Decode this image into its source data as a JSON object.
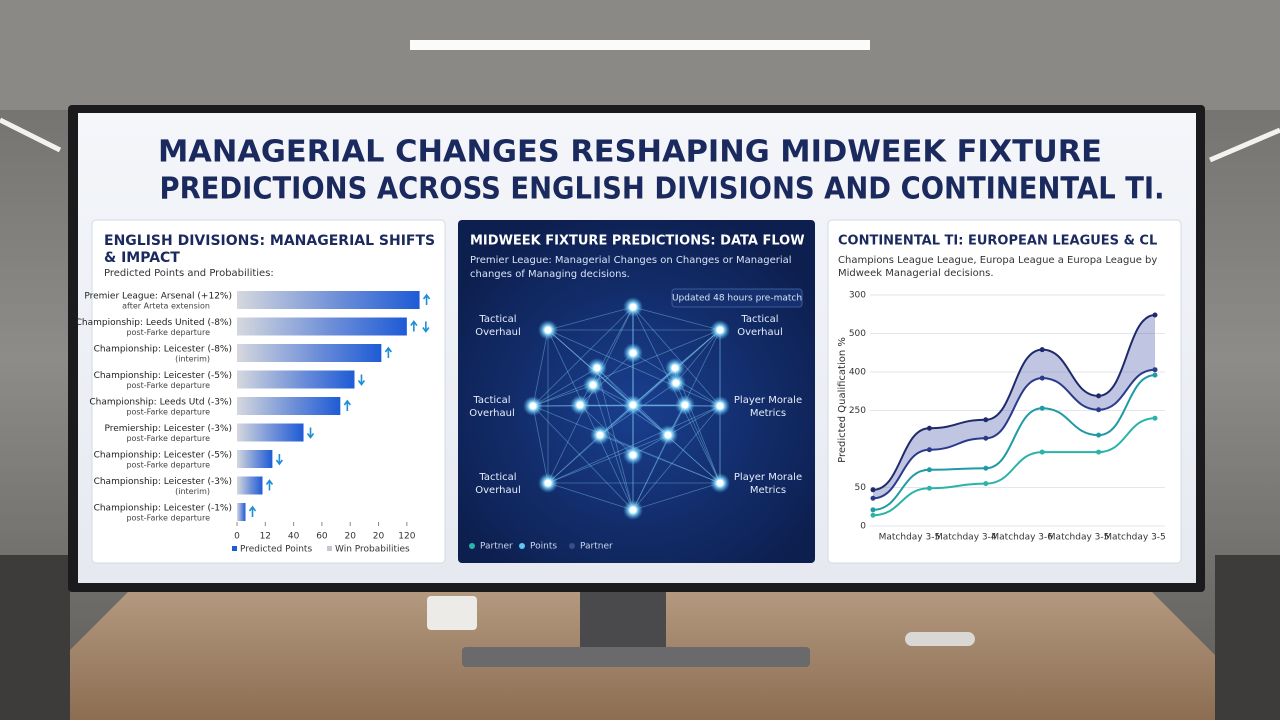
{
  "title": [
    "MANAGERIAL CHANGES RESHAPING MIDWEEK FIXTURE",
    "PREDICTIONS ACROSS ENGLISH DIVISIONS AND CONTINENTAL TI."
  ],
  "chart_data": [
    {
      "type": "bar",
      "orientation": "horizontal",
      "title": [
        "ENGLISH DIVISIONS: MANAGERIAL SHIFTS",
        "& IMPACT"
      ],
      "subtitle": "Predicted Points and Probabilities:",
      "categories": [
        [
          "Premier League: Arsenal (+12%)",
          "after Arteta extension"
        ],
        [
          "Championship: Leeds United (-8%)",
          "post-Farke departure"
        ],
        [
          "Championship: Leicester (-8%)",
          "(interim)"
        ],
        [
          "Championship: Leicester (-5%)",
          "post-Farke departure"
        ],
        [
          "Championship: Leeds Utd (-3%)",
          "post-Farke departure"
        ],
        [
          "Premiership: Leicester (-3%)",
          "post-Farke departure"
        ],
        [
          "Championship: Leicester (-5%)",
          "post-Farke departure"
        ],
        [
          "Championship: Leicester (-3%)",
          "(interim)"
        ],
        [
          "Championship: Leicester (-1%)",
          "post-Farke departure"
        ]
      ],
      "values": [
        129,
        120,
        102,
        83,
        73,
        47,
        25,
        18,
        6
      ],
      "trend": [
        "up",
        "up-down",
        "up",
        "down",
        "up",
        "down",
        "down",
        "up",
        "up"
      ],
      "xlim": [
        0,
        130
      ],
      "xticks": [
        0,
        {
          "value": 20,
          "label": "12"
        },
        40,
        60,
        {
          "value": 80,
          "label": "20"
        },
        {
          "value": 100,
          "label": "20"
        },
        120
      ],
      "legend": [
        {
          "name": "Predicted Points",
          "color": "#1e5bd6"
        },
        {
          "name": "Win Probabilities",
          "color": "#c3c8d2"
        }
      ]
    },
    {
      "type": "line",
      "title": "CONTINENTAL TI: EUROPEAN LEAGUES & CL",
      "subtitle": [
        "Champions League League, Europa League a Europa League by",
        "Midweek Managerial decisions."
      ],
      "ylabel": "Predicted Qualification %",
      "categories": [
        null,
        "Matchday 3-5",
        "Matchday 3-4",
        "Matchday 3-6",
        "Matchday 3-5",
        "Matchday 3-5"
      ],
      "ylim": [
        0,
        300
      ],
      "yticks": [
        0,
        50,
        {
          "value": 150,
          "label": "250"
        },
        {
          "value": 200,
          "label": "400"
        },
        {
          "value": 250,
          "label": "500"
        },
        300
      ],
      "series": [
        {
          "color": "#1f2a6b",
          "values": [
            47,
            127,
            138,
            229,
            169,
            274
          ]
        },
        {
          "color": "#2a3a8c",
          "values": [
            36,
            99,
            114,
            192,
            151,
            203
          ]
        },
        {
          "color": "#1f9aa6",
          "values": [
            21,
            73,
            75,
            153,
            118,
            196
          ]
        },
        {
          "color": "#2bb3a8",
          "values": [
            14,
            49,
            55,
            96,
            96,
            140
          ]
        }
      ]
    }
  ],
  "network": {
    "title": "MIDWEEK FIXTURE PREDICTIONS: DATA FLOW",
    "subtitle": [
      "Premier League: Managerial Changes on Changes or Managerial",
      "changes of Managing decisions."
    ],
    "badge": "Updated 48 hours pre-match",
    "labels": [
      [
        "Tactical",
        "Overhaul"
      ],
      [
        "Tactical",
        "Overhaul"
      ],
      [
        "Tactical",
        "Overhaul"
      ],
      [
        "Player Morale",
        "Metrics"
      ],
      [
        "Tactical",
        "Overhaul"
      ],
      [
        "Player Morale",
        "Metrics"
      ]
    ],
    "legend": [
      {
        "name": "Partner",
        "color": "#2bb3a8"
      },
      {
        "name": "Points",
        "color": "#5fc8f0"
      },
      {
        "name": "Partner",
        "color": "#3a4c8a"
      }
    ]
  }
}
